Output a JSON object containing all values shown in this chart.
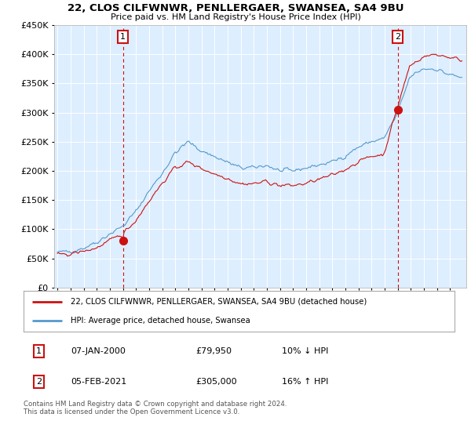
{
  "title_line1": "22, CLOS CILFWNWR, PENLLERGAER, SWANSEA, SA4 9BU",
  "title_line2": "Price paid vs. HM Land Registry's House Price Index (HPI)",
  "hpi_color": "#5599cc",
  "price_color": "#cc1111",
  "marker1_x": 60,
  "marker1_price": 79950,
  "marker2_x": 312,
  "marker2_price": 305000,
  "legend_line1": "22, CLOS CILFWNWR, PENLLERGAER, SWANSEA, SA4 9BU (detached house)",
  "legend_line2": "HPI: Average price, detached house, Swansea",
  "footer": "Contains HM Land Registry data © Crown copyright and database right 2024.\nThis data is licensed under the Open Government Licence v3.0.",
  "ylim_min": 0,
  "ylim_max": 450000,
  "yticks": [
    0,
    50000,
    100000,
    150000,
    200000,
    250000,
    300000,
    350000,
    400000,
    450000
  ],
  "background_color": "#ffffff",
  "plot_bg_color": "#ddeeff",
  "grid_color": "#ffffff"
}
